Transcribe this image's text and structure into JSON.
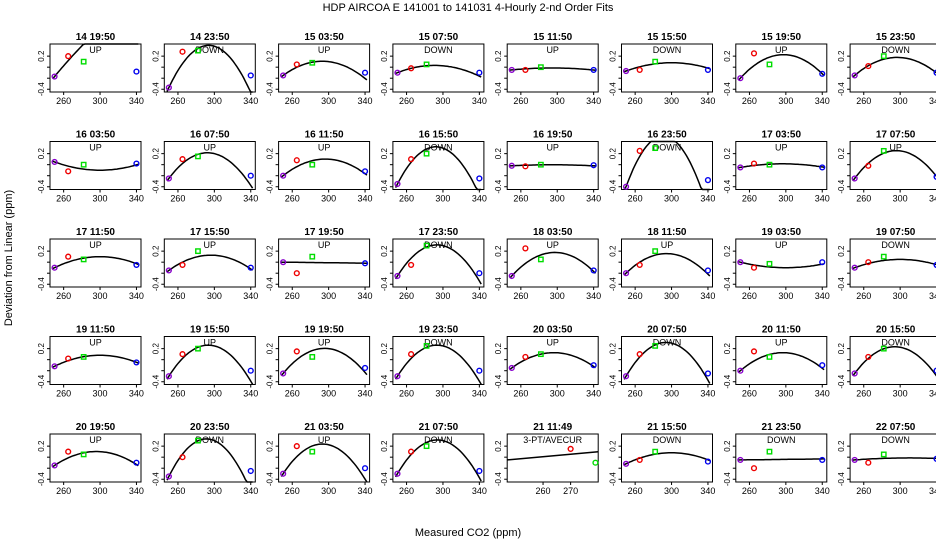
{
  "title": "HDP    AIRCOA E    141001 to 141031    4-Hourly 2-nd Order Fits",
  "xlabel": "Measured CO2 (ppm)",
  "ylabel": "Deviation from Linear (ppm)",
  "colors": {
    "point1": "#8800cc",
    "point2": "#ee0000",
    "point3": "#00dd00",
    "point4": "#0000ee",
    "curve": "#000000"
  },
  "chart_data": {
    "type": "scatter",
    "layout": "5x8 panel grid",
    "y_ticks": [
      "0.2",
      "-0.4",
      "-0.2",
      "0.0"
    ],
    "x_ticks_default": [
      "260",
      "300",
      "340"
    ],
    "x_ticks_special": [
      "260",
      "270"
    ],
    "panels": [
      {
        "title": "14 19:50",
        "label": "UP",
        "pts": [
          [
            250,
            -0.17
          ],
          [
            265,
            0.2
          ],
          [
            282,
            0.1
          ],
          [
            340,
            -0.08
          ]
        ],
        "coef": [
          -0.17,
          0.02,
          -5e-05
        ]
      },
      {
        "title": "14 23:50",
        "label": "DOWN",
        "pts": [
          [
            250,
            -0.37
          ],
          [
            265,
            0.28
          ],
          [
            282,
            0.3
          ],
          [
            340,
            -0.15
          ]
        ],
        "coef": [
          -0.37,
          0.035,
          -0.0004
        ]
      },
      {
        "title": "15 03:50",
        "label": "UP",
        "pts": [
          [
            250,
            -0.15
          ],
          [
            265,
            0.05
          ],
          [
            282,
            0.08
          ],
          [
            340,
            -0.1
          ]
        ],
        "coef": [
          -0.15,
          0.012,
          -0.00014
        ]
      },
      {
        "title": "15 07:50",
        "label": "DOWN",
        "pts": [
          [
            250,
            -0.1
          ],
          [
            265,
            -0.02
          ],
          [
            282,
            0.05
          ],
          [
            340,
            -0.1
          ]
        ],
        "coef": [
          -0.1,
          0.0065,
          -8e-05
        ]
      },
      {
        "title": "15 11:50",
        "label": "UP",
        "pts": [
          [
            250,
            -0.05
          ],
          [
            265,
            -0.05
          ],
          [
            282,
            0.0
          ],
          [
            340,
            -0.05
          ]
        ],
        "coef": [
          -0.05,
          0.0016,
          -1.8e-05
        ]
      },
      {
        "title": "15 15:50",
        "label": "DOWN",
        "pts": [
          [
            250,
            -0.07
          ],
          [
            265,
            -0.05
          ],
          [
            282,
            0.1
          ],
          [
            340,
            -0.05
          ]
        ],
        "coef": [
          -0.07,
          0.006,
          -6e-05
        ]
      },
      {
        "title": "15 19:50",
        "label": "UP",
        "pts": [
          [
            250,
            -0.2
          ],
          [
            265,
            0.25
          ],
          [
            282,
            0.05
          ],
          [
            340,
            -0.12
          ]
        ],
        "coef": [
          -0.2,
          0.018,
          -0.00019
        ]
      },
      {
        "title": "15 23:50",
        "label": "DOWN",
        "pts": [
          [
            250,
            -0.15
          ],
          [
            265,
            0.02
          ],
          [
            282,
            0.2
          ],
          [
            340,
            -0.1
          ]
        ],
        "coef": [
          -0.15,
          0.014,
          -0.00015
        ]
      },
      {
        "title": "16 03:50",
        "label": "UP",
        "pts": [
          [
            250,
            0.05
          ],
          [
            265,
            -0.12
          ],
          [
            282,
            0.0
          ],
          [
            340,
            0.02
          ]
        ],
        "coef": [
          0.05,
          -0.006,
          6e-05
        ]
      },
      {
        "title": "16 07:50",
        "label": "UP",
        "pts": [
          [
            250,
            -0.25
          ],
          [
            265,
            0.1
          ],
          [
            282,
            0.15
          ],
          [
            340,
            -0.2
          ]
        ],
        "coef": [
          -0.25,
          0.022,
          -0.00026
        ]
      },
      {
        "title": "16 11:50",
        "label": "UP",
        "pts": [
          [
            250,
            -0.2
          ],
          [
            265,
            0.08
          ],
          [
            282,
            0.0
          ],
          [
            340,
            -0.12
          ]
        ],
        "coef": [
          -0.2,
          0.013,
          -0.00014
        ]
      },
      {
        "title": "16 15:50",
        "label": "DOWN",
        "pts": [
          [
            250,
            -0.35
          ],
          [
            265,
            0.1
          ],
          [
            282,
            0.2
          ],
          [
            340,
            -0.25
          ]
        ],
        "coef": [
          -0.35,
          0.032,
          -0.00038
        ]
      },
      {
        "title": "16 19:50",
        "label": "UP",
        "pts": [
          [
            250,
            -0.02
          ],
          [
            265,
            -0.03
          ],
          [
            282,
            0.0
          ],
          [
            340,
            -0.01
          ]
        ],
        "coef": [
          -0.02,
          0.0008,
          -9e-06
        ]
      },
      {
        "title": "16 23:50",
        "label": "DOWN",
        "pts": [
          [
            250,
            -0.4
          ],
          [
            265,
            0.25
          ],
          [
            282,
            0.3
          ],
          [
            340,
            -0.28
          ]
        ],
        "coef": [
          -0.4,
          0.045,
          -0.00055
        ]
      },
      {
        "title": "17 03:50",
        "label": "UP",
        "pts": [
          [
            250,
            -0.05
          ],
          [
            265,
            0.02
          ],
          [
            282,
            0.0
          ],
          [
            340,
            -0.05
          ]
        ],
        "coef": [
          -0.05,
          0.0028,
          -3e-05
        ]
      },
      {
        "title": "17 07:50",
        "label": "UP",
        "pts": [
          [
            250,
            -0.25
          ],
          [
            265,
            -0.02
          ],
          [
            282,
            0.25
          ],
          [
            340,
            -0.22
          ]
        ],
        "coef": [
          -0.25,
          0.022,
          -0.00024
        ]
      },
      {
        "title": "17 11:50",
        "label": "UP",
        "pts": [
          [
            250,
            -0.1
          ],
          [
            265,
            0.1
          ],
          [
            282,
            0.05
          ],
          [
            340,
            -0.05
          ]
        ],
        "coef": [
          -0.1,
          0.008,
          -8e-05
        ]
      },
      {
        "title": "17 15:50",
        "label": "UP",
        "pts": [
          [
            250,
            -0.15
          ],
          [
            265,
            -0.05
          ],
          [
            282,
            0.2
          ],
          [
            340,
            -0.1
          ]
        ],
        "coef": [
          -0.15,
          0.012,
          -0.00013
        ]
      },
      {
        "title": "17 19:50",
        "label": "UP",
        "pts": [
          [
            250,
            0.0
          ],
          [
            265,
            -0.2
          ],
          [
            282,
            0.1
          ],
          [
            340,
            -0.02
          ]
        ],
        "coef": [
          0.0,
          -0.0002,
          0.0
        ]
      },
      {
        "title": "17 23:50",
        "label": "DOWN",
        "pts": [
          [
            250,
            -0.25
          ],
          [
            265,
            -0.05
          ],
          [
            282,
            0.3
          ],
          [
            340,
            -0.2
          ]
        ],
        "coef": [
          -0.25,
          0.026,
          -0.0003
        ]
      },
      {
        "title": "18 03:50",
        "label": "UP",
        "pts": [
          [
            250,
            -0.25
          ],
          [
            265,
            0.25
          ],
          [
            282,
            0.05
          ],
          [
            340,
            -0.15
          ]
        ],
        "coef": [
          -0.25,
          0.018,
          -0.00019
        ]
      },
      {
        "title": "18 11:50",
        "label": "UP",
        "pts": [
          [
            250,
            -0.2
          ],
          [
            265,
            -0.05
          ],
          [
            282,
            0.2
          ],
          [
            340,
            -0.15
          ]
        ],
        "coef": [
          -0.2,
          0.016,
          -0.00018
        ]
      },
      {
        "title": "19 03:50",
        "label": "UP",
        "pts": [
          [
            250,
            0.0
          ],
          [
            265,
            -0.1
          ],
          [
            282,
            -0.03
          ],
          [
            340,
            0.0
          ]
        ],
        "coef": [
          0.0,
          -0.004,
          4e-05
        ]
      },
      {
        "title": "19 07:50",
        "label": "DOWN",
        "pts": [
          [
            250,
            -0.1
          ],
          [
            265,
            0.0
          ],
          [
            282,
            0.1
          ],
          [
            340,
            -0.05
          ]
        ],
        "coef": [
          -0.1,
          0.006,
          -6e-05
        ]
      },
      {
        "title": "19 11:50",
        "label": "UP",
        "pts": [
          [
            250,
            -0.12
          ],
          [
            265,
            0.02
          ],
          [
            282,
            0.05
          ],
          [
            340,
            -0.05
          ]
        ],
        "coef": [
          -0.12,
          0.008,
          -8e-05
        ]
      },
      {
        "title": "19 15:50",
        "label": "UP",
        "pts": [
          [
            250,
            -0.3
          ],
          [
            265,
            0.1
          ],
          [
            282,
            0.2
          ],
          [
            340,
            -0.2
          ]
        ],
        "coef": [
          -0.3,
          0.026,
          -0.0003
        ]
      },
      {
        "title": "19 19:50",
        "label": "UP",
        "pts": [
          [
            250,
            -0.25
          ],
          [
            265,
            0.15
          ],
          [
            282,
            0.05
          ],
          [
            340,
            -0.15
          ]
        ],
        "coef": [
          -0.25,
          0.02,
          -0.00022
        ]
      },
      {
        "title": "19 23:50",
        "label": "DOWN",
        "pts": [
          [
            250,
            -0.3
          ],
          [
            265,
            0.1
          ],
          [
            282,
            0.25
          ],
          [
            340,
            -0.2
          ]
        ],
        "coef": [
          -0.3,
          0.026,
          -0.0003
        ]
      },
      {
        "title": "20 03:50",
        "label": "UP",
        "pts": [
          [
            250,
            -0.15
          ],
          [
            265,
            0.05
          ],
          [
            282,
            0.1
          ],
          [
            340,
            -0.1
          ]
        ],
        "coef": [
          -0.15,
          0.012,
          -0.00013
        ]
      },
      {
        "title": "20 07:50",
        "label": "DOWN",
        "pts": [
          [
            250,
            -0.3
          ],
          [
            265,
            0.1
          ],
          [
            282,
            0.25
          ],
          [
            340,
            -0.25
          ]
        ],
        "coef": [
          -0.3,
          0.028,
          -0.00032
        ]
      },
      {
        "title": "20 11:50",
        "label": "UP",
        "pts": [
          [
            250,
            -0.2
          ],
          [
            265,
            0.15
          ],
          [
            282,
            0.05
          ],
          [
            340,
            -0.1
          ]
        ],
        "coef": [
          -0.2,
          0.014,
          -0.00015
        ]
      },
      {
        "title": "20 15:50",
        "label": "DOWN",
        "pts": [
          [
            250,
            -0.25
          ],
          [
            265,
            0.05
          ],
          [
            282,
            0.2
          ],
          [
            340,
            -0.2
          ]
        ],
        "coef": [
          -0.25,
          0.022,
          -0.00025
        ]
      },
      {
        "title": "20 19:50",
        "label": "UP",
        "pts": [
          [
            250,
            -0.15
          ],
          [
            265,
            0.1
          ],
          [
            282,
            0.05
          ],
          [
            340,
            -0.1
          ]
        ],
        "coef": [
          -0.15,
          0.011,
          -0.00012
        ]
      },
      {
        "title": "20 23:50",
        "label": "DOWN",
        "pts": [
          [
            250,
            -0.35
          ],
          [
            265,
            0.0
          ],
          [
            282,
            0.3
          ],
          [
            340,
            -0.25
          ]
        ],
        "coef": [
          -0.35,
          0.033,
          -0.0004
        ]
      },
      {
        "title": "21 03:50",
        "label": "UP",
        "pts": [
          [
            250,
            -0.3
          ],
          [
            265,
            0.2
          ],
          [
            282,
            0.1
          ],
          [
            340,
            -0.2
          ]
        ],
        "coef": [
          -0.3,
          0.025,
          -0.00029
        ]
      },
      {
        "title": "21 07:50",
        "label": "DOWN",
        "pts": [
          [
            250,
            -0.3
          ],
          [
            265,
            0.1
          ],
          [
            282,
            0.2
          ],
          [
            340,
            -0.25
          ]
        ],
        "coef": [
          -0.3,
          0.028,
          -0.00032
        ]
      },
      {
        "title": "21 11:49",
        "label": "3-PT/AVECUR",
        "special": true,
        "pts": [
          [
            270,
            0.15
          ],
          [
            279,
            -0.1
          ]
        ],
        "line": [
          [
            247,
            -0.05
          ],
          [
            280,
            0.1
          ]
        ]
      },
      {
        "title": "21 15:50",
        "label": "DOWN",
        "pts": [
          [
            250,
            -0.12
          ],
          [
            265,
            -0.05
          ],
          [
            282,
            0.1
          ],
          [
            340,
            -0.08
          ]
        ],
        "coef": [
          -0.12,
          0.008,
          -8e-05
        ]
      },
      {
        "title": "21 23:50",
        "label": "DOWN",
        "pts": [
          [
            250,
            -0.05
          ],
          [
            265,
            -0.2
          ],
          [
            282,
            0.1
          ],
          [
            340,
            -0.05
          ]
        ],
        "coef": [
          -0.05,
          0.0002,
          0.0
        ]
      },
      {
        "title": "22 07:50",
        "label": "DOWN",
        "pts": [
          [
            250,
            -0.05
          ],
          [
            265,
            -0.1
          ],
          [
            282,
            0.05
          ],
          [
            340,
            -0.03
          ]
        ],
        "coef": [
          -0.05,
          0.0012,
          -1e-05
        ]
      }
    ]
  }
}
